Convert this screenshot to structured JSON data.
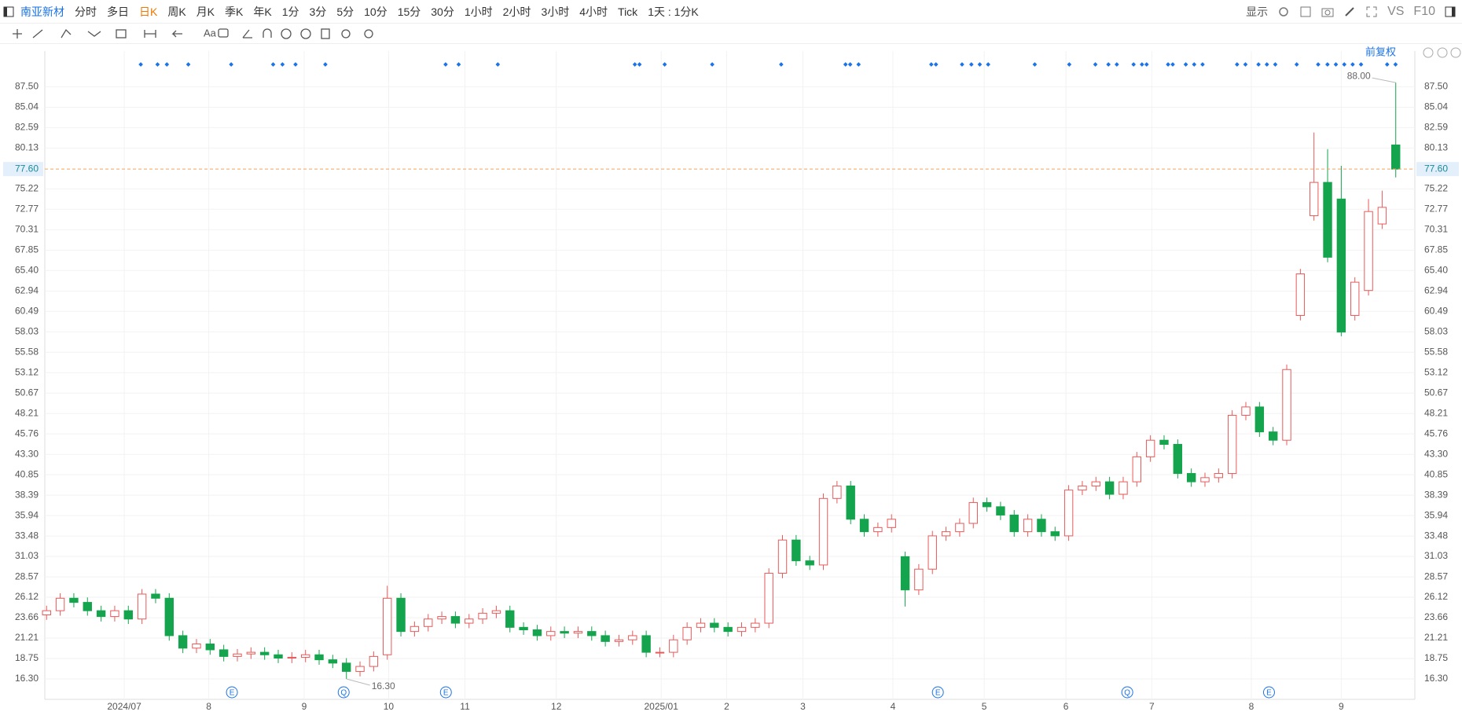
{
  "toolbar": {
    "symbol": "南亚新材",
    "periods": [
      "分时",
      "多日",
      "日K",
      "周K",
      "月K",
      "季K",
      "年K",
      "1分",
      "3分",
      "5分",
      "10分",
      "15分",
      "30分",
      "1小时",
      "2小时",
      "3小时",
      "4小时",
      "Tick",
      "1天 : 1分K"
    ],
    "active_period": 2,
    "display": "显示",
    "vs": "VS",
    "f10": "F10",
    "adjust": "前复权"
  },
  "chart_data": {
    "type": "candlestick",
    "up_color": "#e85a5a",
    "down_color": "#14a44d",
    "open": [
      24,
      24.5,
      26,
      25.5,
      24.5,
      23.8,
      24.5,
      23.5,
      26.5,
      26,
      21.5,
      20,
      20.5,
      19.8,
      19,
      19.3,
      19.5,
      19.2,
      18.8,
      18.9,
      19.2,
      18.6,
      18.2,
      17.2,
      17.8,
      19.2,
      26,
      22,
      22.6,
      23.5,
      23.8,
      23,
      23.5,
      24.2,
      24.5,
      22.5,
      22.2,
      21.5,
      22,
      21.8,
      22,
      21.5,
      20.8,
      21,
      21.5,
      19.5,
      19.5,
      21,
      22.5,
      23,
      22.5,
      22,
      22.5,
      23,
      29,
      33,
      30.5,
      30,
      38,
      39.5,
      35.5,
      34,
      34.5,
      31,
      27,
      29.5,
      33.5,
      34,
      35,
      37.5,
      37,
      36,
      34,
      35.5,
      34,
      33.5,
      39,
      39.5,
      40,
      38.5,
      40,
      43,
      45,
      44.5,
      41,
      40,
      40.5,
      41,
      48,
      49,
      46,
      45,
      60,
      72,
      76,
      74,
      60,
      63,
      71,
      80.5
    ],
    "high": [
      25.1,
      26.6,
      26.6,
      26.1,
      25.1,
      25.1,
      25.1,
      27.1,
      27.1,
      26.6,
      22.1,
      21.1,
      21.1,
      20.4,
      19.9,
      20.1,
      20.1,
      19.8,
      19.5,
      19.8,
      19.8,
      19.2,
      18.8,
      18.4,
      19.6,
      27.5,
      26.6,
      23.2,
      24.1,
      24.4,
      24.4,
      24.1,
      24.8,
      25.1,
      25.1,
      23.1,
      22.8,
      22.6,
      22.6,
      22.6,
      22.6,
      22.1,
      21.6,
      22.1,
      22.1,
      20.1,
      21.6,
      23.1,
      23.6,
      23.6,
      23.1,
      23.1,
      23.6,
      29.6,
      33.6,
      33.6,
      31.1,
      38.6,
      40.1,
      40.1,
      36.1,
      35.1,
      36.1,
      31.6,
      30.1,
      34.1,
      34.6,
      35.6,
      38.1,
      38.1,
      37.6,
      36.6,
      36.1,
      36.1,
      34.6,
      39.6,
      40.1,
      40.6,
      40.6,
      40.6,
      43.6,
      45.6,
      45.6,
      45.1,
      41.6,
      41.1,
      41.6,
      48.6,
      49.6,
      49.6,
      46.6,
      54.1,
      65.6,
      82,
      80,
      78,
      64.6,
      74,
      75,
      88
    ],
    "low": [
      23.4,
      23.9,
      24.9,
      23.9,
      23.2,
      23.2,
      22.9,
      22.9,
      25.4,
      20.9,
      19.4,
      19.4,
      19.2,
      18.4,
      18.4,
      18.7,
      18.6,
      18.2,
      18.2,
      18.3,
      18,
      17.6,
      16.3,
      16.6,
      17.2,
      18.6,
      21.4,
      21.4,
      22,
      22.9,
      22.4,
      22.4,
      22.9,
      23.6,
      21.9,
      21.6,
      20.9,
      20.9,
      21.2,
      21.2,
      20.9,
      20.2,
      20.2,
      20.4,
      18.9,
      18.9,
      18.9,
      20.4,
      21.9,
      21.9,
      21.4,
      21.4,
      21.9,
      22.4,
      28.4,
      29.9,
      29.4,
      29.4,
      37.4,
      34.9,
      33.4,
      33.4,
      33.9,
      25,
      26.4,
      28.9,
      32.9,
      33.4,
      34.4,
      36.4,
      35.4,
      33.4,
      33.4,
      33.4,
      32.9,
      32.9,
      38.4,
      38.9,
      37.9,
      37.9,
      39.4,
      42.4,
      43.9,
      40.4,
      39.4,
      39.4,
      39.9,
      40.4,
      47.4,
      45.4,
      44.4,
      44.4,
      59.4,
      71.4,
      66.4,
      57.5,
      59.4,
      62.4,
      70.4,
      76.6
    ],
    "close": [
      24.5,
      26,
      25.5,
      24.5,
      23.8,
      24.5,
      23.5,
      26.5,
      26,
      21.5,
      20,
      20.5,
      19.8,
      19,
      19.3,
      19.5,
      19.2,
      18.8,
      18.9,
      19.2,
      18.6,
      18.2,
      17.2,
      17.8,
      19,
      26,
      22,
      22.6,
      23.5,
      23.8,
      23,
      23.5,
      24.2,
      24.5,
      22.5,
      22.2,
      21.5,
      22,
      21.8,
      22,
      21.5,
      20.8,
      21,
      21.5,
      19.5,
      19.5,
      21,
      22.5,
      23,
      22.5,
      22,
      22.5,
      23,
      29,
      33,
      30.5,
      30,
      38,
      39.5,
      35.5,
      34,
      34.5,
      35.5,
      27,
      29.5,
      33.5,
      34,
      35,
      37.5,
      37,
      36,
      34,
      35.5,
      34,
      33.5,
      39,
      39.5,
      40,
      38.5,
      40,
      43,
      45,
      44.5,
      41,
      40,
      40.5,
      41,
      48,
      49,
      46,
      45,
      53.5,
      65,
      76,
      67,
      58,
      64,
      72.5,
      73,
      77.6
    ],
    "xlim": [
      -0.13,
      100.4
    ],
    "xticks": [
      {
        "value": 5.7,
        "label": "2024/07"
      },
      {
        "value": 11.9,
        "label": "8"
      },
      {
        "value": 18.9,
        "label": "9"
      },
      {
        "value": 25.1,
        "label": "10"
      },
      {
        "value": 30.7,
        "label": "11"
      },
      {
        "value": 37.4,
        "label": "12"
      },
      {
        "value": 45.1,
        "label": "2025/01"
      },
      {
        "value": 49.9,
        "label": "2"
      },
      {
        "value": 55.5,
        "label": "3"
      },
      {
        "value": 62.1,
        "label": "4"
      },
      {
        "value": 68.8,
        "label": "5"
      },
      {
        "value": 74.8,
        "label": "6"
      },
      {
        "value": 81.1,
        "label": "7"
      },
      {
        "value": 88.4,
        "label": "8"
      },
      {
        "value": 95,
        "label": "9"
      }
    ],
    "ylim": [
      13.84,
      91.79
    ],
    "yticks": [
      {
        "value": 16.3,
        "label": "16.30"
      },
      18.75,
      21.21,
      23.66,
      26.12,
      28.57,
      31.03,
      33.48,
      35.94,
      38.39,
      40.85,
      {
        "value": 43.3,
        "label": "43.30"
      },
      45.76,
      48.21,
      50.67,
      53.12,
      55.58,
      58.03,
      60.49,
      62.94,
      {
        "value": 65.4,
        "label": "65.40"
      },
      67.85,
      70.31,
      72.77,
      75.22,
      80.13,
      82.59,
      85.04,
      {
        "value": 87.5,
        "label": "87.50"
      }
    ],
    "grid": true,
    "last_price": {
      "value": 77.6,
      "label": "77.60"
    },
    "max_label": {
      "value": 88,
      "label": "88.00"
    },
    "min_label": {
      "value": 16.3,
      "label": "16.30"
    },
    "events": [
      "E",
      "Q",
      "E",
      "E",
      "Q",
      "E"
    ]
  }
}
